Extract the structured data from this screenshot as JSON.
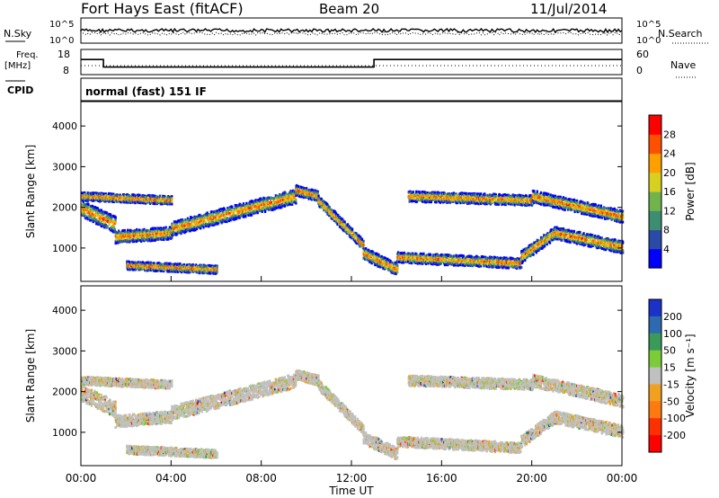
{
  "header": {
    "station": "Fort Hays East (fitACF)",
    "beam": "Beam 20",
    "date": "11/Jul/2014"
  },
  "top_panels": {
    "nsky_label": "N.Sky",
    "nsky_ticks": [
      "10^5",
      "10^0"
    ],
    "nsearch_label": "N.Search",
    "nsearch_ticks": [
      "10^5",
      "10^0"
    ],
    "freq_label": "Freq.",
    "freq_unit": "[MHz]",
    "freq_ticks": [
      "18",
      "8"
    ],
    "nave_label": "Nave",
    "nave_ticks": [
      "60",
      "0"
    ],
    "cpid_label": "CPID",
    "cpid_text": "normal (fast) 151 IF"
  },
  "chart_data": [
    {
      "type": "line",
      "name_in_figure": "noise-panel",
      "series": [
        {
          "name": "N.Sky",
          "note": "solid line near 10^2-10^3"
        },
        {
          "name": "N.Search",
          "note": "dotted line near 10^2-10^3"
        }
      ],
      "x": [
        0,
        24
      ],
      "ylim": [
        1,
        100000
      ]
    },
    {
      "type": "line",
      "name_in_figure": "freq-nave-panel",
      "series": [
        {
          "name": "Freq.",
          "x": [
            0,
            1,
            1,
            13,
            13,
            24
          ],
          "values": [
            14,
            14,
            11,
            11,
            14,
            14
          ]
        },
        {
          "name": "Nave",
          "x": [
            0,
            24
          ],
          "values": [
            17,
            17
          ]
        }
      ],
      "ylim": [
        8,
        18
      ]
    },
    {
      "type": "heatmap",
      "name_in_figure": "power-panel",
      "xlabel": "",
      "ylabel": "Slant Range [km]",
      "xlim": [
        0,
        24
      ],
      "ylim": [
        180,
        4600
      ],
      "yticks": [
        1000,
        2000,
        3000,
        4000
      ],
      "colorbar": {
        "label": "Power [dB]",
        "ticks": [
          "4",
          "8",
          "12",
          "16",
          "20",
          "24",
          "28"
        ],
        "levels": [
          "#0000ff",
          "#2b4aa8",
          "#3d8d72",
          "#71b44e",
          "#d7d020",
          "#ffa000",
          "#ff5000",
          "#ff0000"
        ]
      }
    },
    {
      "type": "heatmap",
      "name_in_figure": "velocity-panel",
      "xlabel": "Time UT",
      "ylabel": "Slant Range [km]",
      "xlim": [
        0,
        24
      ],
      "ylim": [
        180,
        4600
      ],
      "yticks": [
        1000,
        2000,
        3000,
        4000
      ],
      "xticks": [
        "00:00",
        "04:00",
        "08:00",
        "12:00",
        "16:00",
        "20:00",
        "00:00"
      ],
      "colorbar": {
        "label": "Velocity [m s⁻¹]",
        "ticks": [
          "200",
          "100",
          "50",
          "15",
          "-15",
          "-50",
          "-100",
          "-200"
        ],
        "levels": [
          "#1a32c8",
          "#2e6ab0",
          "#3a9a5a",
          "#7ccc3a",
          "#c0c0c0",
          "#f2a020",
          "#ff7a10",
          "#ff3000",
          "#ff0000"
        ]
      }
    }
  ]
}
